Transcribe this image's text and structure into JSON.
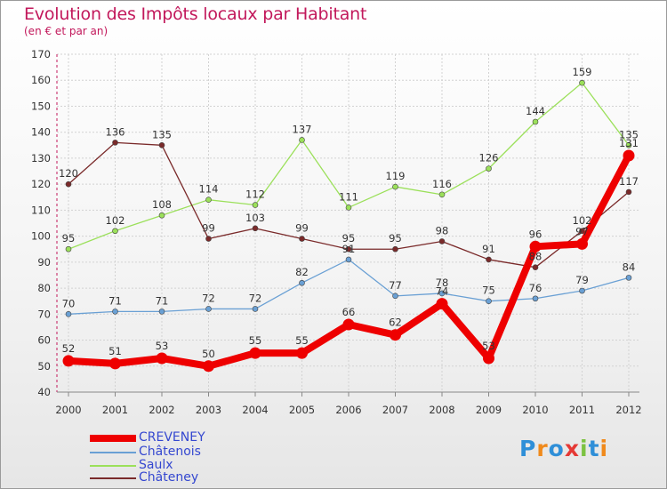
{
  "title": "Evolution des Impôts locaux par Habitant",
  "subtitle": "(en € et par an)",
  "chart_data": {
    "type": "line",
    "title": "Evolution des Impôts locaux par Habitant",
    "subtitle": "(en € et par an)",
    "xlabel": "",
    "ylabel": "",
    "ylim": [
      40,
      170
    ],
    "yticks": [
      40,
      50,
      60,
      70,
      80,
      90,
      100,
      110,
      120,
      130,
      140,
      150,
      160,
      170
    ],
    "grid": true,
    "legend_position": "bottom-left",
    "x": [
      "2000",
      "2001",
      "2002",
      "2003",
      "2004",
      "2005",
      "2006",
      "2007",
      "2008",
      "2009",
      "2010",
      "2011",
      "2012"
    ],
    "series": [
      {
        "name": "CREVENEY",
        "color": "#ee0000",
        "values": [
          52,
          51,
          53,
          50,
          55,
          55,
          66,
          62,
          74,
          53,
          96,
          97,
          131
        ],
        "labels": [
          "52",
          "51",
          "53",
          "50",
          "55",
          "55",
          "66",
          "62",
          "74",
          "53",
          "96",
          "97",
          "131"
        ]
      },
      {
        "name": "Châtenois",
        "color": "#6aa0d4",
        "values": [
          70,
          71,
          71,
          72,
          72,
          82,
          91,
          77,
          78,
          75,
          76,
          79,
          84
        ],
        "labels": [
          "70",
          "71",
          "71",
          "72",
          "72",
          "82",
          "91",
          "77",
          "78",
          "75",
          "76",
          "79",
          "84"
        ]
      },
      {
        "name": "Saulx",
        "color": "#9be05a",
        "values": [
          95,
          102,
          108,
          114,
          112,
          137,
          111,
          119,
          116,
          126,
          144,
          159,
          135
        ],
        "labels": [
          "95",
          "102",
          "108",
          "114",
          "112",
          "137",
          "111",
          "119",
          "116",
          "126",
          "144",
          "159",
          "135"
        ]
      },
      {
        "name": "Châteney",
        "color": "#7a2a2a",
        "values": [
          120,
          136,
          135,
          99,
          103,
          99,
          95,
          95,
          98,
          91,
          88,
          102,
          117
        ],
        "labels": [
          "120",
          "136",
          "135",
          "99",
          "103",
          "99",
          "95",
          "95",
          "98",
          "91",
          "88",
          "102",
          "117"
        ]
      }
    ]
  },
  "legend": {
    "items": [
      {
        "name": "CREVENEY",
        "color": "#ee0000"
      },
      {
        "name": "Châtenois",
        "color": "#6aa0d4"
      },
      {
        "name": "Saulx",
        "color": "#9be05a"
      },
      {
        "name": "Châteney",
        "color": "#7a2a2a"
      }
    ]
  },
  "logo": {
    "text": "Proxiti",
    "letters": [
      {
        "char": "P",
        "color": "#2f8fd8"
      },
      {
        "char": "r",
        "color": "#f08a1c"
      },
      {
        "char": "o",
        "color": "#2f8fd8"
      },
      {
        "char": "x",
        "color": "#e53935"
      },
      {
        "char": "i",
        "color": "#7cc242"
      },
      {
        "char": "t",
        "color": "#2f8fd8"
      },
      {
        "char": "i",
        "color": "#f08a1c"
      }
    ]
  }
}
